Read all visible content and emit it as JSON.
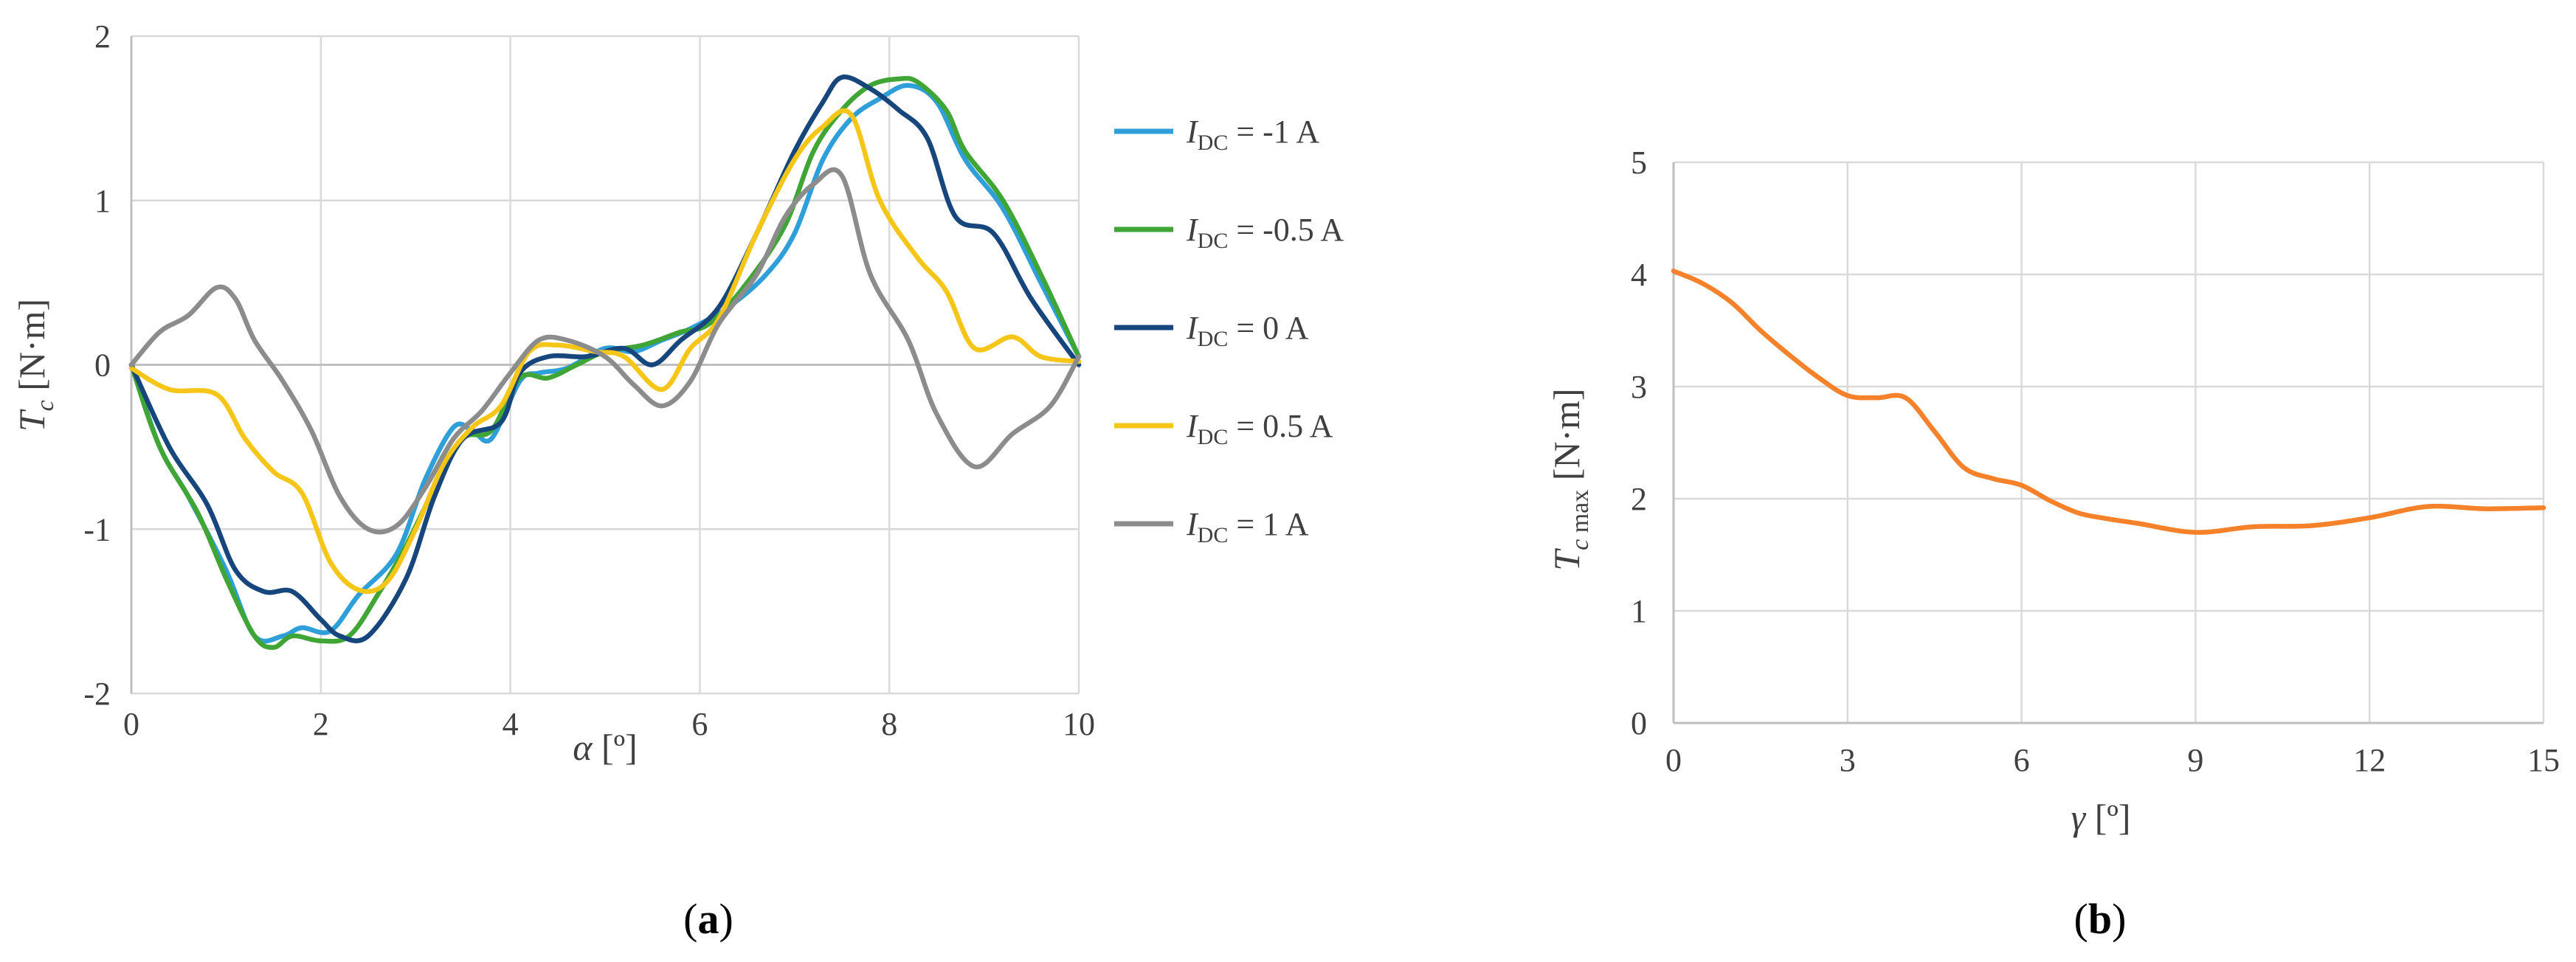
{
  "panel_labels": [
    "a",
    "b"
  ],
  "chart_data": [
    {
      "type": "line",
      "xlabel": "α [º]",
      "ylabel": "Tc [N·m]",
      "xlim": [
        0,
        10
      ],
      "ylim": [
        -2,
        2
      ],
      "xticks": [
        "0",
        "2",
        "4",
        "6",
        "8",
        "10"
      ],
      "yticks": [
        "-2",
        "-1",
        "0",
        "1",
        "2"
      ],
      "grid": true,
      "legend": "right",
      "series": [
        {
          "name": "IDC = -1 A",
          "legend_label": {
            "sym": "I",
            "sub": "DC",
            "rest": " = -1 A"
          },
          "color": "#2e9fd8",
          "points": [
            [
              0,
              0
            ],
            [
              0.3,
              -0.5
            ],
            [
              0.6,
              -0.8
            ],
            [
              1.0,
              -1.25
            ],
            [
              1.3,
              -1.65
            ],
            [
              1.6,
              -1.65
            ],
            [
              1.8,
              -1.6
            ],
            [
              2.1,
              -1.62
            ],
            [
              2.4,
              -1.4
            ],
            [
              2.8,
              -1.15
            ],
            [
              3.1,
              -0.7
            ],
            [
              3.4,
              -0.38
            ],
            [
              3.6,
              -0.4
            ],
            [
              3.8,
              -0.45
            ],
            [
              4.1,
              -0.1
            ],
            [
              4.3,
              -0.05
            ],
            [
              4.6,
              -0.02
            ],
            [
              5.0,
              0.1
            ],
            [
              5.3,
              0.08
            ],
            [
              5.6,
              0.15
            ],
            [
              5.9,
              0.22
            ],
            [
              6.3,
              0.35
            ],
            [
              6.7,
              0.55
            ],
            [
              7.0,
              0.8
            ],
            [
              7.3,
              1.25
            ],
            [
              7.6,
              1.5
            ],
            [
              7.9,
              1.62
            ],
            [
              8.2,
              1.7
            ],
            [
              8.5,
              1.6
            ],
            [
              8.8,
              1.25
            ],
            [
              9.2,
              0.95
            ],
            [
              9.6,
              0.5
            ],
            [
              10,
              0.05
            ]
          ]
        },
        {
          "name": "IDC = -0.5 A",
          "legend_label": {
            "sym": "I",
            "sub": "DC",
            "rest": " = -0.5 A"
          },
          "color": "#3fa535",
          "points": [
            [
              0,
              0
            ],
            [
              0.3,
              -0.5
            ],
            [
              0.7,
              -0.9
            ],
            [
              1.0,
              -1.3
            ],
            [
              1.3,
              -1.65
            ],
            [
              1.5,
              -1.72
            ],
            [
              1.7,
              -1.65
            ],
            [
              2.0,
              -1.68
            ],
            [
              2.3,
              -1.65
            ],
            [
              2.6,
              -1.4
            ],
            [
              2.9,
              -1.1
            ],
            [
              3.2,
              -0.75
            ],
            [
              3.5,
              -0.45
            ],
            [
              3.8,
              -0.4
            ],
            [
              4.1,
              -0.08
            ],
            [
              4.4,
              -0.08
            ],
            [
              4.7,
              0.0
            ],
            [
              5.0,
              0.08
            ],
            [
              5.4,
              0.12
            ],
            [
              5.8,
              0.2
            ],
            [
              6.1,
              0.25
            ],
            [
              6.5,
              0.5
            ],
            [
              6.9,
              0.85
            ],
            [
              7.2,
              1.3
            ],
            [
              7.5,
              1.55
            ],
            [
              7.8,
              1.7
            ],
            [
              8.1,
              1.74
            ],
            [
              8.3,
              1.72
            ],
            [
              8.6,
              1.55
            ],
            [
              8.8,
              1.3
            ],
            [
              9.2,
              1.0
            ],
            [
              9.6,
              0.55
            ],
            [
              10,
              0.05
            ]
          ]
        },
        {
          "name": "IDC = 0 A",
          "legend_label": {
            "sym": "I",
            "sub": "DC",
            "rest": " = 0 A"
          },
          "color": "#17467d",
          "points": [
            [
              0,
              0
            ],
            [
              0.4,
              -0.5
            ],
            [
              0.8,
              -0.85
            ],
            [
              1.1,
              -1.25
            ],
            [
              1.4,
              -1.38
            ],
            [
              1.7,
              -1.38
            ],
            [
              2.0,
              -1.55
            ],
            [
              2.2,
              -1.65
            ],
            [
              2.5,
              -1.65
            ],
            [
              2.9,
              -1.3
            ],
            [
              3.2,
              -0.8
            ],
            [
              3.5,
              -0.45
            ],
            [
              3.9,
              -0.35
            ],
            [
              4.1,
              -0.05
            ],
            [
              4.4,
              0.05
            ],
            [
              4.8,
              0.05
            ],
            [
              5.2,
              0.1
            ],
            [
              5.5,
              0.0
            ],
            [
              5.8,
              0.15
            ],
            [
              6.2,
              0.35
            ],
            [
              6.6,
              0.8
            ],
            [
              7.0,
              1.3
            ],
            [
              7.3,
              1.6
            ],
            [
              7.5,
              1.75
            ],
            [
              7.8,
              1.68
            ],
            [
              8.1,
              1.55
            ],
            [
              8.4,
              1.38
            ],
            [
              8.7,
              0.9
            ],
            [
              9.1,
              0.8
            ],
            [
              9.5,
              0.4
            ],
            [
              10,
              0.0
            ]
          ]
        },
        {
          "name": "IDC = 0.5 A",
          "legend_label": {
            "sym": "I",
            "sub": "DC",
            "rest": " = 0.5 A"
          },
          "color": "#f5c518",
          "points": [
            [
              0,
              -0.02
            ],
            [
              0.4,
              -0.15
            ],
            [
              0.9,
              -0.18
            ],
            [
              1.2,
              -0.45
            ],
            [
              1.5,
              -0.65
            ],
            [
              1.8,
              -0.78
            ],
            [
              2.1,
              -1.2
            ],
            [
              2.4,
              -1.37
            ],
            [
              2.7,
              -1.32
            ],
            [
              3.0,
              -1.0
            ],
            [
              3.3,
              -0.6
            ],
            [
              3.6,
              -0.38
            ],
            [
              3.9,
              -0.25
            ],
            [
              4.2,
              0.08
            ],
            [
              4.5,
              0.12
            ],
            [
              4.9,
              0.08
            ],
            [
              5.2,
              0.05
            ],
            [
              5.6,
              -0.15
            ],
            [
              5.9,
              0.1
            ],
            [
              6.2,
              0.28
            ],
            [
              6.6,
              0.8
            ],
            [
              7.0,
              1.25
            ],
            [
              7.3,
              1.45
            ],
            [
              7.6,
              1.52
            ],
            [
              7.9,
              1.0
            ],
            [
              8.3,
              0.65
            ],
            [
              8.6,
              0.45
            ],
            [
              8.9,
              0.1
            ],
            [
              9.3,
              0.17
            ],
            [
              9.6,
              0.05
            ],
            [
              10,
              0.02
            ]
          ]
        },
        {
          "name": "IDC = 1 A",
          "legend_label": {
            "sym": "I",
            "sub": "DC",
            "rest": " = 1 A"
          },
          "color": "#8c8c8c",
          "points": [
            [
              0,
              0
            ],
            [
              0.3,
              0.2
            ],
            [
              0.6,
              0.3
            ],
            [
              0.9,
              0.47
            ],
            [
              1.1,
              0.4
            ],
            [
              1.3,
              0.15
            ],
            [
              1.6,
              -0.1
            ],
            [
              1.9,
              -0.4
            ],
            [
              2.2,
              -0.8
            ],
            [
              2.5,
              -1.0
            ],
            [
              2.8,
              -0.98
            ],
            [
              3.1,
              -0.75
            ],
            [
              3.4,
              -0.45
            ],
            [
              3.7,
              -0.28
            ],
            [
              4.0,
              -0.05
            ],
            [
              4.3,
              0.15
            ],
            [
              4.6,
              0.15
            ],
            [
              5.0,
              0.05
            ],
            [
              5.3,
              -0.12
            ],
            [
              5.6,
              -0.25
            ],
            [
              5.9,
              -0.1
            ],
            [
              6.2,
              0.25
            ],
            [
              6.6,
              0.55
            ],
            [
              6.9,
              0.9
            ],
            [
              7.2,
              1.1
            ],
            [
              7.5,
              1.15
            ],
            [
              7.8,
              0.55
            ],
            [
              8.2,
              0.15
            ],
            [
              8.5,
              -0.3
            ],
            [
              8.9,
              -0.62
            ],
            [
              9.3,
              -0.42
            ],
            [
              9.7,
              -0.25
            ],
            [
              10,
              0.05
            ]
          ]
        }
      ]
    },
    {
      "type": "line",
      "xlabel": "γ [º]",
      "ylabel": "Tc max [N·m]",
      "xlim": [
        0,
        15
      ],
      "ylim": [
        0,
        5
      ],
      "xticks": [
        "0",
        "3",
        "6",
        "9",
        "12",
        "15"
      ],
      "yticks": [
        "0",
        "1",
        "2",
        "3",
        "4",
        "5"
      ],
      "grid": true,
      "series": [
        {
          "color": "#f5822a",
          "points": [
            [
              0,
              4.03
            ],
            [
              0.5,
              3.92
            ],
            [
              1.0,
              3.75
            ],
            [
              1.5,
              3.5
            ],
            [
              2.0,
              3.28
            ],
            [
              2.5,
              3.08
            ],
            [
              3.0,
              2.92
            ],
            [
              3.5,
              2.9
            ],
            [
              4.0,
              2.9
            ],
            [
              4.5,
              2.6
            ],
            [
              5.0,
              2.28
            ],
            [
              5.5,
              2.18
            ],
            [
              6.0,
              2.12
            ],
            [
              6.5,
              1.98
            ],
            [
              7.0,
              1.87
            ],
            [
              7.5,
              1.82
            ],
            [
              8.0,
              1.78
            ],
            [
              9.0,
              1.7
            ],
            [
              10.0,
              1.75
            ],
            [
              11.0,
              1.76
            ],
            [
              12.0,
              1.83
            ],
            [
              13.0,
              1.93
            ],
            [
              14.0,
              1.91
            ],
            [
              15.0,
              1.92
            ]
          ]
        }
      ]
    }
  ]
}
